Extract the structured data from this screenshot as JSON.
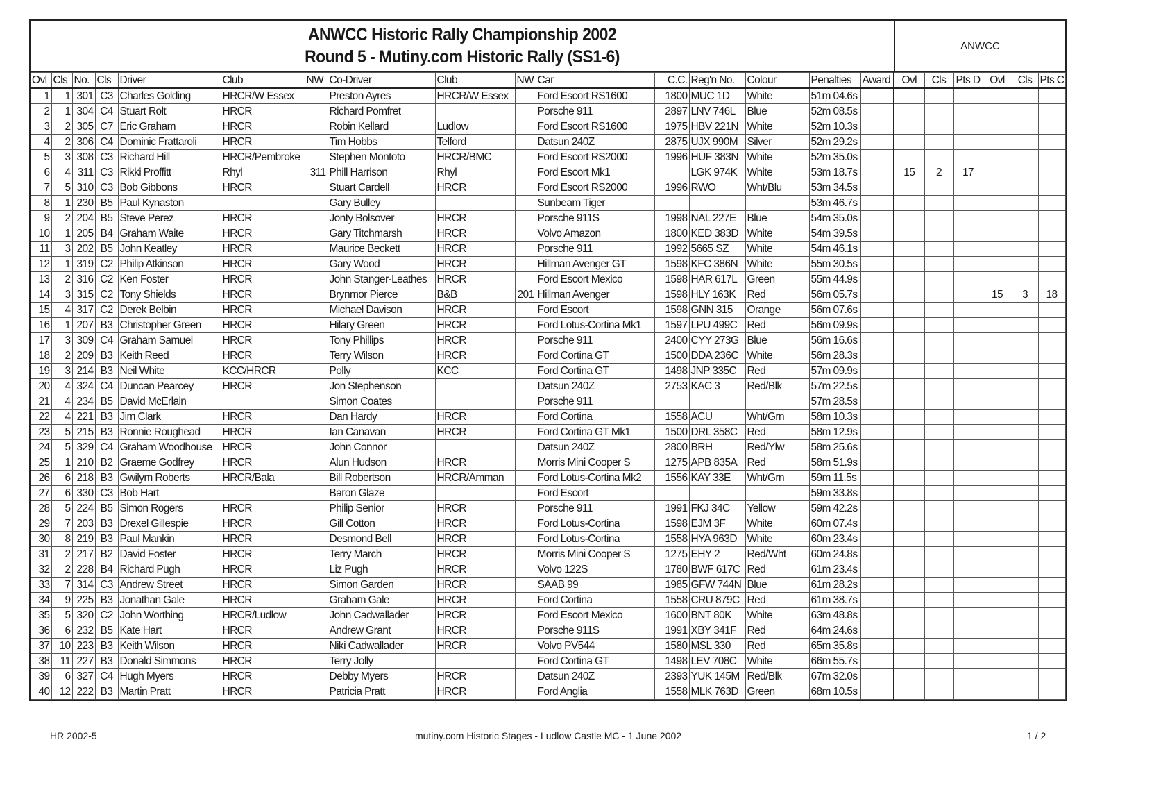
{
  "title": {
    "line1": "ANWCC Historic Rally Championship 2002",
    "line2": "Round 5 - Mutiny.com Historic Rally (SS1-6)",
    "side": "ANWCC"
  },
  "columns": [
    "Ovl",
    "Cls",
    "No.",
    "Cls",
    "Driver",
    "Club",
    "NW",
    "Co-Driver",
    "Club",
    "NW",
    "Car",
    "C.C.",
    "Reg'n No.",
    "Colour",
    "Penalties",
    "Award",
    "Ovl",
    "Cls",
    "Pts D",
    "Ovl",
    "Cls",
    "Pts C"
  ],
  "rows": [
    [
      "1",
      "1",
      "301",
      "C3",
      "Charles Golding",
      "HRCR/W Essex",
      "",
      "Preston Ayres",
      "HRCR/W Essex",
      "",
      "Ford Escort RS1600",
      "1800",
      "MUC 1D",
      "White",
      "51m 04.6s",
      "",
      "",
      "",
      "",
      "",
      "",
      ""
    ],
    [
      "2",
      "1",
      "304",
      "C4",
      "Stuart Rolt",
      "HRCR",
      "",
      "Richard Pomfret",
      "",
      "",
      "Porsche 911",
      "2897",
      "LNV 746L",
      "Blue",
      "52m 08.5s",
      "",
      "",
      "",
      "",
      "",
      "",
      ""
    ],
    [
      "3",
      "2",
      "305",
      "C7",
      "Eric Graham",
      "HRCR",
      "",
      "Robin Kellard",
      "Ludlow",
      "",
      "Ford Escort RS1600",
      "1975",
      "HBV 221N",
      "White",
      "52m 10.3s",
      "",
      "",
      "",
      "",
      "",
      "",
      ""
    ],
    [
      "4",
      "2",
      "306",
      "C4",
      "Dominic Frattaroli",
      "HRCR",
      "",
      "Tim Hobbs",
      "Telford",
      "",
      "Datsun 240Z",
      "2875",
      "UJX 990M",
      "Silver",
      "52m 29.2s",
      "",
      "",
      "",
      "",
      "",
      "",
      ""
    ],
    [
      "5",
      "3",
      "308",
      "C3",
      "Richard Hill",
      "HRCR/Pembroke",
      "",
      "Stephen Montoto",
      "HRCR/BMC",
      "",
      "Ford Escort RS2000",
      "1996",
      "HUF 383N",
      "White",
      "52m 35.0s",
      "",
      "",
      "",
      "",
      "",
      "",
      ""
    ],
    [
      "6",
      "4",
      "311",
      "C3",
      "Rikki Proffitt",
      "Rhyl",
      "311",
      "Phill Harrison",
      "Rhyl",
      "",
      "Ford Escort Mk1",
      "",
      "LGK 974K",
      "White",
      "53m 18.7s",
      "",
      "15",
      "2",
      "17",
      "",
      "",
      ""
    ],
    [
      "7",
      "5",
      "310",
      "C3",
      "Bob Gibbons",
      "HRCR",
      "",
      "Stuart Cardell",
      "HRCR",
      "",
      "Ford Escort RS2000",
      "1996",
      "RWO",
      "Wht/Blu",
      "53m 34.5s",
      "",
      "",
      "",
      "",
      "",
      "",
      ""
    ],
    [
      "8",
      "1",
      "230",
      "B5",
      "Paul Kynaston",
      "",
      "",
      "Gary Bulley",
      "",
      "",
      "Sunbeam Tiger",
      "",
      "",
      "",
      "53m 46.7s",
      "",
      "",
      "",
      "",
      "",
      "",
      ""
    ],
    [
      "9",
      "2",
      "204",
      "B5",
      "Steve Perez",
      "HRCR",
      "",
      "Jonty Bolsover",
      "HRCR",
      "",
      "Porsche 911S",
      "1998",
      "NAL 227E",
      "Blue",
      "54m 35.0s",
      "",
      "",
      "",
      "",
      "",
      "",
      ""
    ],
    [
      "10",
      "1",
      "205",
      "B4",
      "Graham Waite",
      "HRCR",
      "",
      "Gary Titchmarsh",
      "HRCR",
      "",
      "Volvo Amazon",
      "1800",
      "KED 383D",
      "White",
      "54m 39.5s",
      "",
      "",
      "",
      "",
      "",
      "",
      ""
    ],
    [
      "11",
      "3",
      "202",
      "B5",
      "John Keatley",
      "HRCR",
      "",
      "Maurice Beckett",
      "HRCR",
      "",
      "Porsche 911",
      "1992",
      "5665 SZ",
      "White",
      "54m 46.1s",
      "",
      "",
      "",
      "",
      "",
      "",
      ""
    ],
    [
      "12",
      "1",
      "319",
      "C2",
      "Philip Atkinson",
      "HRCR",
      "",
      "Gary Wood",
      "HRCR",
      "",
      "Hillman Avenger GT",
      "1598",
      "KFC 386N",
      "White",
      "55m 30.5s",
      "",
      "",
      "",
      "",
      "",
      "",
      ""
    ],
    [
      "13",
      "2",
      "316",
      "C2",
      "Ken Foster",
      "HRCR",
      "",
      "John Stanger-Leathes",
      "HRCR",
      "",
      "Ford Escort Mexico",
      "1598",
      "HAR 617L",
      "Green",
      "55m 44.9s",
      "",
      "",
      "",
      "",
      "",
      "",
      ""
    ],
    [
      "14",
      "3",
      "315",
      "C2",
      "Tony Shields",
      "HRCR",
      "",
      "Brynmor Pierce",
      "B&B",
      "201",
      "Hillman Avenger",
      "1598",
      "HLY 163K",
      "Red",
      "56m 05.7s",
      "",
      "",
      "",
      "",
      "15",
      "3",
      "18"
    ],
    [
      "15",
      "4",
      "317",
      "C2",
      "Derek Belbin",
      "HRCR",
      "",
      "Michael Davison",
      "HRCR",
      "",
      "Ford Escort",
      "1598",
      "GNN 315",
      "Orange",
      "56m 07.6s",
      "",
      "",
      "",
      "",
      "",
      "",
      ""
    ],
    [
      "16",
      "1",
      "207",
      "B3",
      "Christopher Green",
      "HRCR",
      "",
      "Hilary Green",
      "HRCR",
      "",
      "Ford Lotus-Cortina Mk1",
      "1597",
      "LPU 499C",
      "Red",
      "56m 09.9s",
      "",
      "",
      "",
      "",
      "",
      "",
      ""
    ],
    [
      "17",
      "3",
      "309",
      "C4",
      "Graham Samuel",
      "HRCR",
      "",
      "Tony Phillips",
      "HRCR",
      "",
      "Porsche 911",
      "2400",
      "CYY 273G",
      "Blue",
      "56m 16.6s",
      "",
      "",
      "",
      "",
      "",
      "",
      ""
    ],
    [
      "18",
      "2",
      "209",
      "B3",
      "Keith Reed",
      "HRCR",
      "",
      "Terry Wilson",
      "HRCR",
      "",
      "Ford Cortina GT",
      "1500",
      "DDA 236C",
      "White",
      "56m 28.3s",
      "",
      "",
      "",
      "",
      "",
      "",
      ""
    ],
    [
      "19",
      "3",
      "214",
      "B3",
      "Neil White",
      "KCC/HRCR",
      "",
      "Polly",
      "KCC",
      "",
      "Ford Cortina GT",
      "1498",
      "JNP 335C",
      "Red",
      "57m 09.9s",
      "",
      "",
      "",
      "",
      "",
      "",
      ""
    ],
    [
      "20",
      "4",
      "324",
      "C4",
      "Duncan Pearcey",
      "HRCR",
      "",
      "Jon Stephenson",
      "",
      "",
      "Datsun 240Z",
      "2753",
      "KAC 3",
      "Red/Blk",
      "57m 22.5s",
      "",
      "",
      "",
      "",
      "",
      "",
      ""
    ],
    [
      "21",
      "4",
      "234",
      "B5",
      "David McErlain",
      "",
      "",
      "Simon Coates",
      "",
      "",
      "Porsche 911",
      "",
      "",
      "",
      "57m 28.5s",
      "",
      "",
      "",
      "",
      "",
      "",
      ""
    ],
    [
      "22",
      "4",
      "221",
      "B3",
      "Jim Clark",
      "HRCR",
      "",
      "Dan Hardy",
      "HRCR",
      "",
      "Ford Cortina",
      "1558",
      "ACU",
      "Wht/Grn",
      "58m 10.3s",
      "",
      "",
      "",
      "",
      "",
      "",
      ""
    ],
    [
      "23",
      "5",
      "215",
      "B3",
      "Ronnie Roughead",
      "HRCR",
      "",
      "Ian Canavan",
      "HRCR",
      "",
      "Ford Cortina GT Mk1",
      "1500",
      "DRL 358C",
      "Red",
      "58m 12.9s",
      "",
      "",
      "",
      "",
      "",
      "",
      ""
    ],
    [
      "24",
      "5",
      "329",
      "C4",
      "Graham Woodhouse",
      "HRCR",
      "",
      "John Connor",
      "",
      "",
      "Datsun 240Z",
      "2800",
      "BRH",
      "Red/Ylw",
      "58m 25.6s",
      "",
      "",
      "",
      "",
      "",
      "",
      ""
    ],
    [
      "25",
      "1",
      "210",
      "B2",
      "Graeme Godfrey",
      "HRCR",
      "",
      "Alun Hudson",
      "HRCR",
      "",
      "Morris Mini Cooper S",
      "1275",
      "APB 835A",
      "Red",
      "58m 51.9s",
      "",
      "",
      "",
      "",
      "",
      "",
      ""
    ],
    [
      "26",
      "6",
      "218",
      "B3",
      "Gwilym Roberts",
      "HRCR/Bala",
      "",
      "Bill Robertson",
      "HRCR/Amman",
      "",
      "Ford Lotus-Cortina Mk2",
      "1556",
      "KAY 33E",
      "Wht/Grn",
      "59m 11.5s",
      "",
      "",
      "",
      "",
      "",
      "",
      ""
    ],
    [
      "27",
      "6",
      "330",
      "C3",
      "Bob Hart",
      "",
      "",
      "Baron Glaze",
      "",
      "",
      "Ford Escort",
      "",
      "",
      "",
      "59m 33.8s",
      "",
      "",
      "",
      "",
      "",
      "",
      ""
    ],
    [
      "28",
      "5",
      "224",
      "B5",
      "Simon Rogers",
      "HRCR",
      "",
      "Philip Senior",
      "HRCR",
      "",
      "Porsche 911",
      "1991",
      "FKJ 34C",
      "Yellow",
      "59m 42.2s",
      "",
      "",
      "",
      "",
      "",
      "",
      ""
    ],
    [
      "29",
      "7",
      "203",
      "B3",
      "Drexel Gillespie",
      "HRCR",
      "",
      "Gill Cotton",
      "HRCR",
      "",
      "Ford Lotus-Cortina",
      "1598",
      "EJM 3F",
      "White",
      "60m 07.4s",
      "",
      "",
      "",
      "",
      "",
      "",
      ""
    ],
    [
      "30",
      "8",
      "219",
      "B3",
      "Paul Mankin",
      "HRCR",
      "",
      "Desmond Bell",
      "HRCR",
      "",
      "Ford Lotus-Cortina",
      "1558",
      "HYA 963D",
      "White",
      "60m 23.4s",
      "",
      "",
      "",
      "",
      "",
      "",
      ""
    ],
    [
      "31",
      "2",
      "217",
      "B2",
      "David Foster",
      "HRCR",
      "",
      "Terry March",
      "HRCR",
      "",
      "Morris Mini Cooper S",
      "1275",
      "EHY 2",
      "Red/Wht",
      "60m 24.8s",
      "",
      "",
      "",
      "",
      "",
      "",
      ""
    ],
    [
      "32",
      "2",
      "228",
      "B4",
      "Richard Pugh",
      "HRCR",
      "",
      "Liz Pugh",
      "HRCR",
      "",
      "Volvo 122S",
      "1780",
      "BWF 617C",
      "Red",
      "61m 23.4s",
      "",
      "",
      "",
      "",
      "",
      "",
      ""
    ],
    [
      "33",
      "7",
      "314",
      "C3",
      "Andrew Street",
      "HRCR",
      "",
      "Simon Garden",
      "HRCR",
      "",
      "SAAB 99",
      "1985",
      "GFW 744N",
      "Blue",
      "61m 28.2s",
      "",
      "",
      "",
      "",
      "",
      "",
      ""
    ],
    [
      "34",
      "9",
      "225",
      "B3",
      "Jonathan Gale",
      "HRCR",
      "",
      "Graham Gale",
      "HRCR",
      "",
      "Ford Cortina",
      "1558",
      "CRU 879C",
      "Red",
      "61m 38.7s",
      "",
      "",
      "",
      "",
      "",
      "",
      ""
    ],
    [
      "35",
      "5",
      "320",
      "C2",
      "John Worthing",
      "HRCR/Ludlow",
      "",
      "John Cadwallader",
      "HRCR",
      "",
      "Ford Escort Mexico",
      "1600",
      "BNT 80K",
      "White",
      "63m 48.8s",
      "",
      "",
      "",
      "",
      "",
      "",
      ""
    ],
    [
      "36",
      "6",
      "232",
      "B5",
      "Kate Hart",
      "HRCR",
      "",
      "Andrew Grant",
      "HRCR",
      "",
      "Porsche 911S",
      "1991",
      "XBY 341F",
      "Red",
      "64m 24.6s",
      "",
      "",
      "",
      "",
      "",
      "",
      ""
    ],
    [
      "37",
      "10",
      "223",
      "B3",
      "Keith Wilson",
      "HRCR",
      "",
      "Niki Cadwallader",
      "HRCR",
      "",
      "Volvo PV544",
      "1580",
      "MSL 330",
      "Red",
      "65m 35.8s",
      "",
      "",
      "",
      "",
      "",
      "",
      ""
    ],
    [
      "38",
      "11",
      "227",
      "B3",
      "Donald Simmons",
      "HRCR",
      "",
      "Terry Jolly",
      "",
      "",
      "Ford Cortina GT",
      "1498",
      "LEV 708C",
      "White",
      "66m 55.7s",
      "",
      "",
      "",
      "",
      "",
      "",
      ""
    ],
    [
      "39",
      "6",
      "327",
      "C4",
      "Hugh Myers",
      "HRCR",
      "",
      "Debby Myers",
      "HRCR",
      "",
      "Datsun 240Z",
      "2393",
      "YUK 145M",
      "Red/Blk",
      "67m 32.0s",
      "",
      "",
      "",
      "",
      "",
      "",
      ""
    ],
    [
      "40",
      "12",
      "222",
      "B3",
      "Martin Pratt",
      "HRCR",
      "",
      "Patricia Pratt",
      "HRCR",
      "",
      "Ford Anglia",
      "1558",
      "MLK 763D",
      "Green",
      "68m 10.5s",
      "",
      "",
      "",
      "",
      "",
      "",
      ""
    ]
  ],
  "footer": {
    "left": "HR 2002-5",
    "center": "mutiny.com Historic Stages - Ludlow Castle MC - 1 June 2002",
    "right": "1 / 2"
  }
}
